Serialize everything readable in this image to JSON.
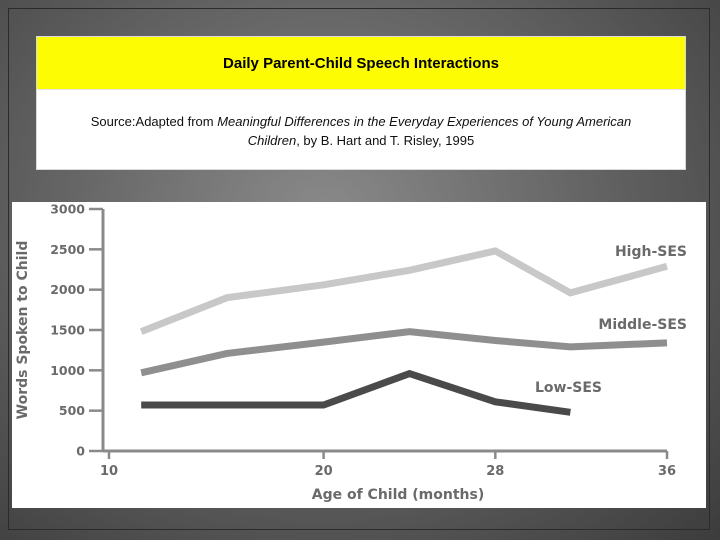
{
  "slide": {
    "title": "Daily Parent-Child Speech Interactions",
    "source_prefix": "Source:",
    "source_adapted": "Adapted from ",
    "source_work_a": "Meaningful Differences in the Everyday Experiences of Young American",
    "source_work_b": "Children",
    "source_rest": ", by B. Hart and T. Risley, 1995"
  },
  "chart_data": {
    "type": "line",
    "xlabel": "Age of Child (months)",
    "ylabel": "Words Spoken to Child",
    "xlim": [
      10,
      36
    ],
    "ylim": [
      0,
      3000
    ],
    "x_ticks": [
      "10",
      "20",
      "28",
      "36"
    ],
    "y_ticks": [
      "0",
      "500",
      "1000",
      "1500",
      "2000",
      "2500",
      "3000"
    ],
    "grid": false,
    "series": [
      {
        "name": "High-SES",
        "color": "#c8c8c8",
        "points": [
          [
            11.5,
            1480
          ],
          [
            15.5,
            1900
          ],
          [
            20,
            2060
          ],
          [
            24,
            2240
          ],
          [
            28,
            2480
          ],
          [
            31.5,
            1960
          ],
          [
            36,
            2290
          ]
        ]
      },
      {
        "name": "Middle-SES",
        "color": "#8f8f8f",
        "points": [
          [
            11.5,
            970
          ],
          [
            15.5,
            1210
          ],
          [
            20,
            1350
          ],
          [
            24,
            1480
          ],
          [
            28,
            1370
          ],
          [
            31.5,
            1290
          ],
          [
            36,
            1340
          ]
        ]
      },
      {
        "name": "Low-SES",
        "color": "#4a4a4a",
        "points": [
          [
            11.5,
            570
          ],
          [
            20,
            570
          ],
          [
            24,
            960
          ],
          [
            28,
            610
          ],
          [
            31.5,
            480
          ]
        ]
      }
    ]
  }
}
